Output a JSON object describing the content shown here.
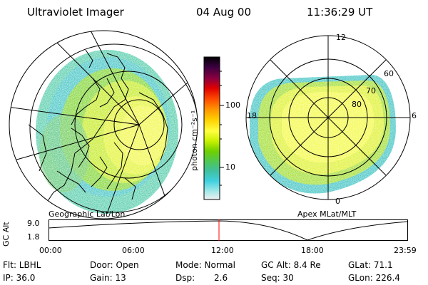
{
  "header": {
    "instrument": "Ultraviolet Imager",
    "date": "04 Aug 00",
    "time": "11:36:29 UT"
  },
  "left_panel": {
    "caption": "Geographic Lat/Lon"
  },
  "right_panel": {
    "caption": "Apex MLat/MLT",
    "mlt_labels": {
      "top": "12",
      "left": "18",
      "right": "6",
      "bottom": "0"
    },
    "lat_labels": [
      "60",
      "70",
      "80"
    ]
  },
  "colorbar": {
    "unit_label": "photon cm⁻²s⁻¹",
    "ticks": [
      "100",
      "10"
    ],
    "colors": [
      "#000000",
      "#3a0040",
      "#8a0040",
      "#e00000",
      "#ff5000",
      "#ff9800",
      "#ffd000",
      "#ffff40",
      "#c8f000",
      "#70d000",
      "#50c850",
      "#40c0a0",
      "#40d0e0",
      "#a0e8e8",
      "#f0f0f0"
    ]
  },
  "altitude_plot": {
    "ylabel": "GC Alt",
    "y_ticks": [
      "9.0",
      "1.8"
    ],
    "x_ticks": [
      "00:00",
      "06:00",
      "12:00",
      "18:00",
      "23:59"
    ],
    "current_time_marker_color": "#ff0000"
  },
  "info": {
    "row1": {
      "flt": "Flt: LBHL",
      "door": "Door: Open",
      "mode": "Mode: Normal",
      "gcalt": "GC Alt: 8.4 Re",
      "glat": "GLat:  71.1"
    },
    "row2": {
      "ip": "IP: 36.0",
      "gain": "Gain: 13",
      "dsp_label": "Dsp:",
      "dsp_value": "2.6",
      "seq": "Seq: 30",
      "glon": "GLon: 226.4"
    }
  }
}
